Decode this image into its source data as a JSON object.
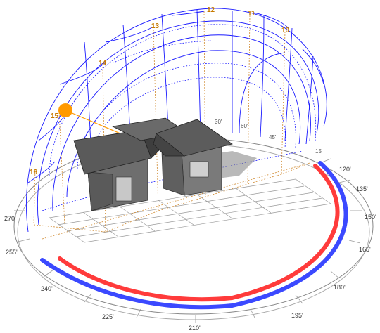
{
  "scene": {
    "sun_color": "#ff9900",
    "path_color": "#1a1aff",
    "hour_color": "#c77a00",
    "arc_red": "#ff3b3b",
    "arc_blue": "#3b49ff"
  },
  "compass_labels": [
    "120'",
    "135'",
    "150'",
    "165'",
    "180'",
    "195'",
    "210'",
    "225'",
    "240'",
    "255'",
    "270'"
  ],
  "hour_labels": [
    "11",
    "12",
    "13",
    "14",
    "15",
    "16",
    "10"
  ],
  "minor_labels": [
    "60'",
    "30'",
    "45'",
    "15'"
  ]
}
